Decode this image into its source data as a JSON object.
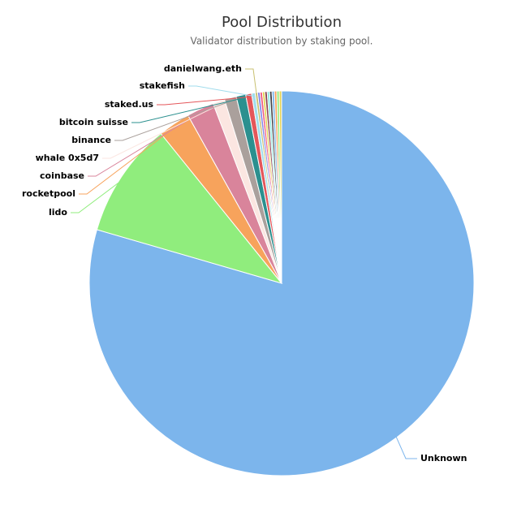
{
  "chart_data": {
    "type": "pie",
    "title": "Pool Distribution",
    "subtitle": "Validator distribution by staking pool.",
    "categories": [
      "Unknown",
      "lido",
      "rocketpool",
      "coinbase",
      "whale 0x5d7",
      "binance",
      "bitcoin suisse",
      "staked.us",
      "stakefish",
      "danielwang.eth",
      null,
      null,
      null,
      null,
      null,
      null,
      null,
      null,
      null,
      null
    ],
    "values": [
      79.5,
      9.7,
      2.7,
      2.3,
      1.0,
      1.0,
      0.8,
      0.5,
      0.3,
      0.2,
      0.2,
      0.2,
      0.2,
      0.2,
      0.2,
      0.2,
      0.2,
      0.2,
      0.2,
      0.2
    ],
    "colors": [
      "#7cb5ec",
      "#90ed7d",
      "#f7a35c",
      "#d9849b",
      "#fbe6e1",
      "#aaa09c",
      "#2b908f",
      "#e4565a",
      "#a0dcec",
      "#c8c070",
      "#8085e9",
      "#f15c80",
      "#e4d354",
      "#8d4653",
      "#91e8e1",
      "#434348",
      "#7cb5ec",
      "#f7a35c",
      "#90ed7d",
      "#e4d354"
    ]
  }
}
